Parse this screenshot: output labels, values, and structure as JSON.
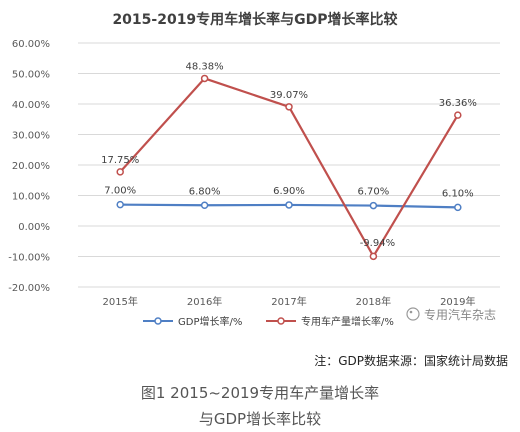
{
  "chart_data": {
    "type": "line",
    "title": "2015-2019专用车增长率与GDP增长率比较",
    "categories": [
      "2015年",
      "2016年",
      "2017年",
      "2018年",
      "2019年"
    ],
    "ylim": [
      -20,
      60
    ],
    "y_ticks": [
      "60.00%",
      "50.00%",
      "40.00%",
      "30.00%",
      "20.00%",
      "10.00%",
      "0.00%",
      "-10.00%",
      "-20.00%"
    ],
    "grid": true,
    "legend_placement": "bottom-left",
    "series": [
      {
        "name": "GDP增长率/%",
        "values": [
          7.0,
          6.8,
          6.9,
          6.7,
          6.1
        ],
        "labels": [
          "7.00%",
          "6.80%",
          "6.90%",
          "6.70%",
          "6.10%"
        ],
        "color": "#4f7fc4"
      },
      {
        "name": "专用车产量增长率/%",
        "values": [
          17.75,
          48.38,
          39.07,
          -9.94,
          36.36
        ],
        "labels": [
          "17.75%",
          "48.38%",
          "39.07%",
          "-9.94%",
          "36.36%"
        ],
        "color": "#c0504d"
      }
    ]
  },
  "watermark": "专用汽车杂志",
  "footnote": "注：GDP数据来源：国家统计局数据",
  "caption_line1": "图1 2015~2019专用车产量增长率",
  "caption_line2": "与GDP增长率比较"
}
